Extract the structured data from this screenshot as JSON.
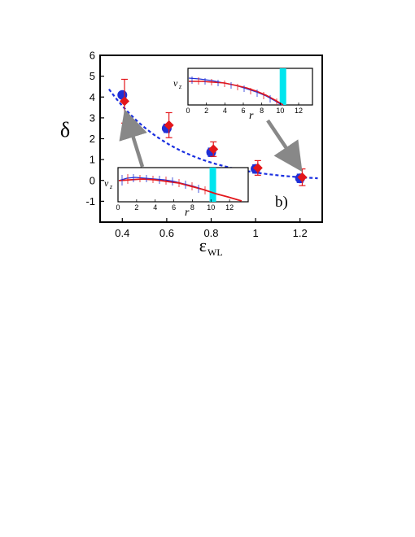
{
  "chart_data": {
    "type": "scatter",
    "panel_label": "b)",
    "xlabel": "ε",
    "xlabel_sub": "WL",
    "ylabel": "δ",
    "xlim": [
      0.3,
      1.3
    ],
    "ylim": [
      -2,
      6
    ],
    "xticks": [
      "0.4",
      "0.6",
      "0.8",
      "1",
      "1.2"
    ],
    "xtick_values": [
      0.4,
      0.6,
      0.8,
      1.0,
      1.2
    ],
    "yticks": [
      "-1",
      "0",
      "1",
      "2",
      "3",
      "4",
      "5",
      "6"
    ],
    "ytick_values": [
      -1,
      0,
      1,
      2,
      3,
      4,
      5,
      6
    ],
    "grid": false,
    "colors": {
      "blue": "#1f2fd6",
      "red": "#e3161b",
      "fit": "#1a2fe0",
      "arrow": "#888888",
      "wall": "#00e5ee"
    },
    "series": [
      {
        "marker": "circle",
        "color": "blue",
        "points": [
          {
            "x": 0.4,
            "y": 4.1,
            "err": 0.0
          },
          {
            "x": 0.6,
            "y": 2.5,
            "err": 0.2
          },
          {
            "x": 0.8,
            "y": 1.35,
            "err": 0.2
          },
          {
            "x": 1.0,
            "y": 0.55,
            "err": 0.2
          },
          {
            "x": 1.2,
            "y": 0.1,
            "err": 0.2
          }
        ]
      },
      {
        "marker": "diamond",
        "color": "red",
        "points": [
          {
            "x": 0.41,
            "y": 3.8,
            "err": 1.05
          },
          {
            "x": 0.61,
            "y": 2.65,
            "err": 0.6
          },
          {
            "x": 0.81,
            "y": 1.5,
            "err": 0.35
          },
          {
            "x": 1.01,
            "y": 0.6,
            "err": 0.35
          },
          {
            "x": 1.21,
            "y": 0.15,
            "err": 0.4
          }
        ]
      }
    ],
    "fit_curve": {
      "style": "dashed",
      "x": [
        0.34,
        1.28
      ],
      "note": ""
    },
    "insets": [
      {
        "id": "upper",
        "xlabel": "r",
        "ylabel": "v",
        "ylabel_sub": "z",
        "xlim": [
          0,
          13.5
        ],
        "xticks": [
          "0",
          "2",
          "4",
          "6",
          "8",
          "10",
          "12"
        ],
        "xtick_values": [
          0,
          2,
          4,
          6,
          8,
          10,
          12
        ],
        "wall_x": 10.3,
        "linked_point": {
          "x": 1.2,
          "y": 0.1
        }
      },
      {
        "id": "lower",
        "xlabel": "r",
        "ylabel": "v",
        "ylabel_sub": "z",
        "xlim": [
          0,
          14
        ],
        "xticks": [
          "0",
          "2",
          "4",
          "6",
          "8",
          "10",
          "12"
        ],
        "xtick_values": [
          0,
          2,
          4,
          6,
          8,
          10,
          12
        ],
        "wall_x": 10.2,
        "linked_point": {
          "x": 0.4,
          "y": 4.1
        }
      }
    ]
  }
}
